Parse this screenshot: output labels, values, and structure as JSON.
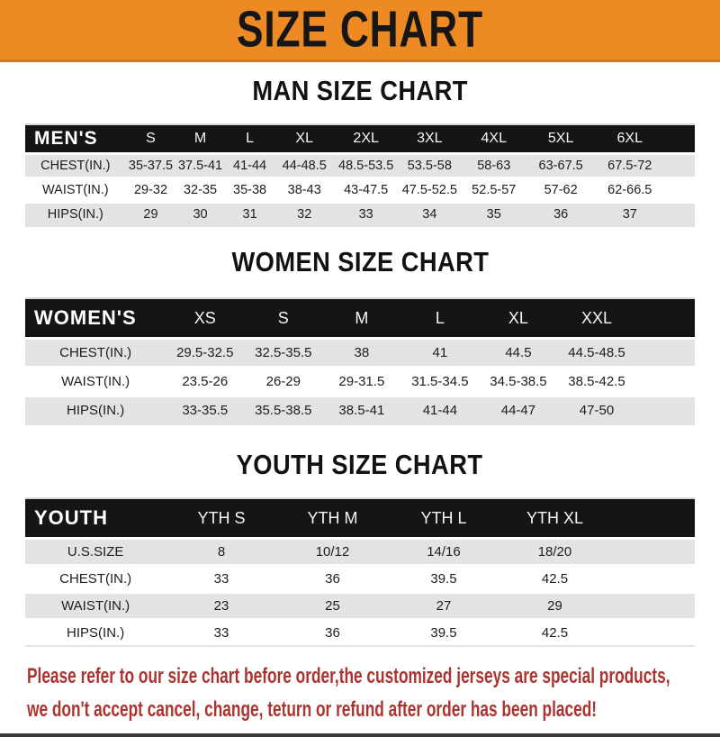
{
  "banner": {
    "title": "SIZE CHART",
    "bg_color": "#ee8a23",
    "text_color": "#161616"
  },
  "sections": [
    {
      "title": "MAN SIZE CHART",
      "table": {
        "label": "MEN'S",
        "sizes": [
          "S",
          "M",
          "L",
          "XL",
          "2XL",
          "3XL",
          "4XL",
          "5XL",
          "6XL"
        ],
        "rows": [
          {
            "label": "CHEST(IN.)",
            "values": [
              "35-37.5",
              "37.5-41",
              "41-44",
              "44-48.5",
              "48.5-53.5",
              "53.5-58",
              "58-63",
              "63-67.5",
              "67.5-72"
            ]
          },
          {
            "label": "WAIST(IN.)",
            "values": [
              "29-32",
              "32-35",
              "35-38",
              "38-43",
              "43-47.5",
              "47.5-52.5",
              "52.5-57",
              "57-62",
              "62-66.5"
            ]
          },
          {
            "label": "HIPS(IN.)",
            "values": [
              "29",
              "30",
              "31",
              "32",
              "33",
              "34",
              "35",
              "36",
              "37"
            ]
          }
        ]
      }
    },
    {
      "title": "WOMEN SIZE CHART",
      "table": {
        "label": "WOMEN'S",
        "sizes": [
          "XS",
          "S",
          "M",
          "L",
          "XL",
          "XXL"
        ],
        "rows": [
          {
            "label": "CHEST(IN.)",
            "values": [
              "29.5-32.5",
              "32.5-35.5",
              "38",
              "41",
              "44.5",
              "44.5-48.5"
            ]
          },
          {
            "label": "WAIST(IN.)",
            "values": [
              "23.5-26",
              "26-29",
              "29-31.5",
              "31.5-34.5",
              "34.5-38.5",
              "38.5-42.5"
            ]
          },
          {
            "label": "HIPS(IN.)",
            "values": [
              "33-35.5",
              "35.5-38.5",
              "38.5-41",
              "41-44",
              "44-47",
              "47-50"
            ]
          }
        ]
      }
    },
    {
      "title": "YOUTH SIZE CHART",
      "table": {
        "label": "YOUTH",
        "sizes": [
          "YTH S",
          "YTH M",
          "YTH L",
          "YTH XL"
        ],
        "rows": [
          {
            "label": "U.S.SIZE",
            "values": [
              "8",
              "10/12",
              "14/16",
              "18/20"
            ]
          },
          {
            "label": "CHEST(IN.)",
            "values": [
              "33",
              "36",
              "39.5",
              "42.5"
            ]
          },
          {
            "label": "WAIST(IN.)",
            "values": [
              "23",
              "25",
              "27",
              "29"
            ]
          },
          {
            "label": "HIPS(IN.)",
            "values": [
              "33",
              "36",
              "39.5",
              "42.5"
            ]
          }
        ]
      }
    }
  ],
  "disclaimer": {
    "lines": [
      "Please refer to our size chart before order,the customized jerseys are special products,",
      "we don't accept cancel, change, teturn or refund after order has been placed!"
    ],
    "color": "#a93430"
  },
  "colors": {
    "banner_orange": "#ee8a23",
    "header_bar_black": "#151515",
    "row_alt_gray": "#e3e3e3",
    "disclaimer_red": "#a93430"
  }
}
